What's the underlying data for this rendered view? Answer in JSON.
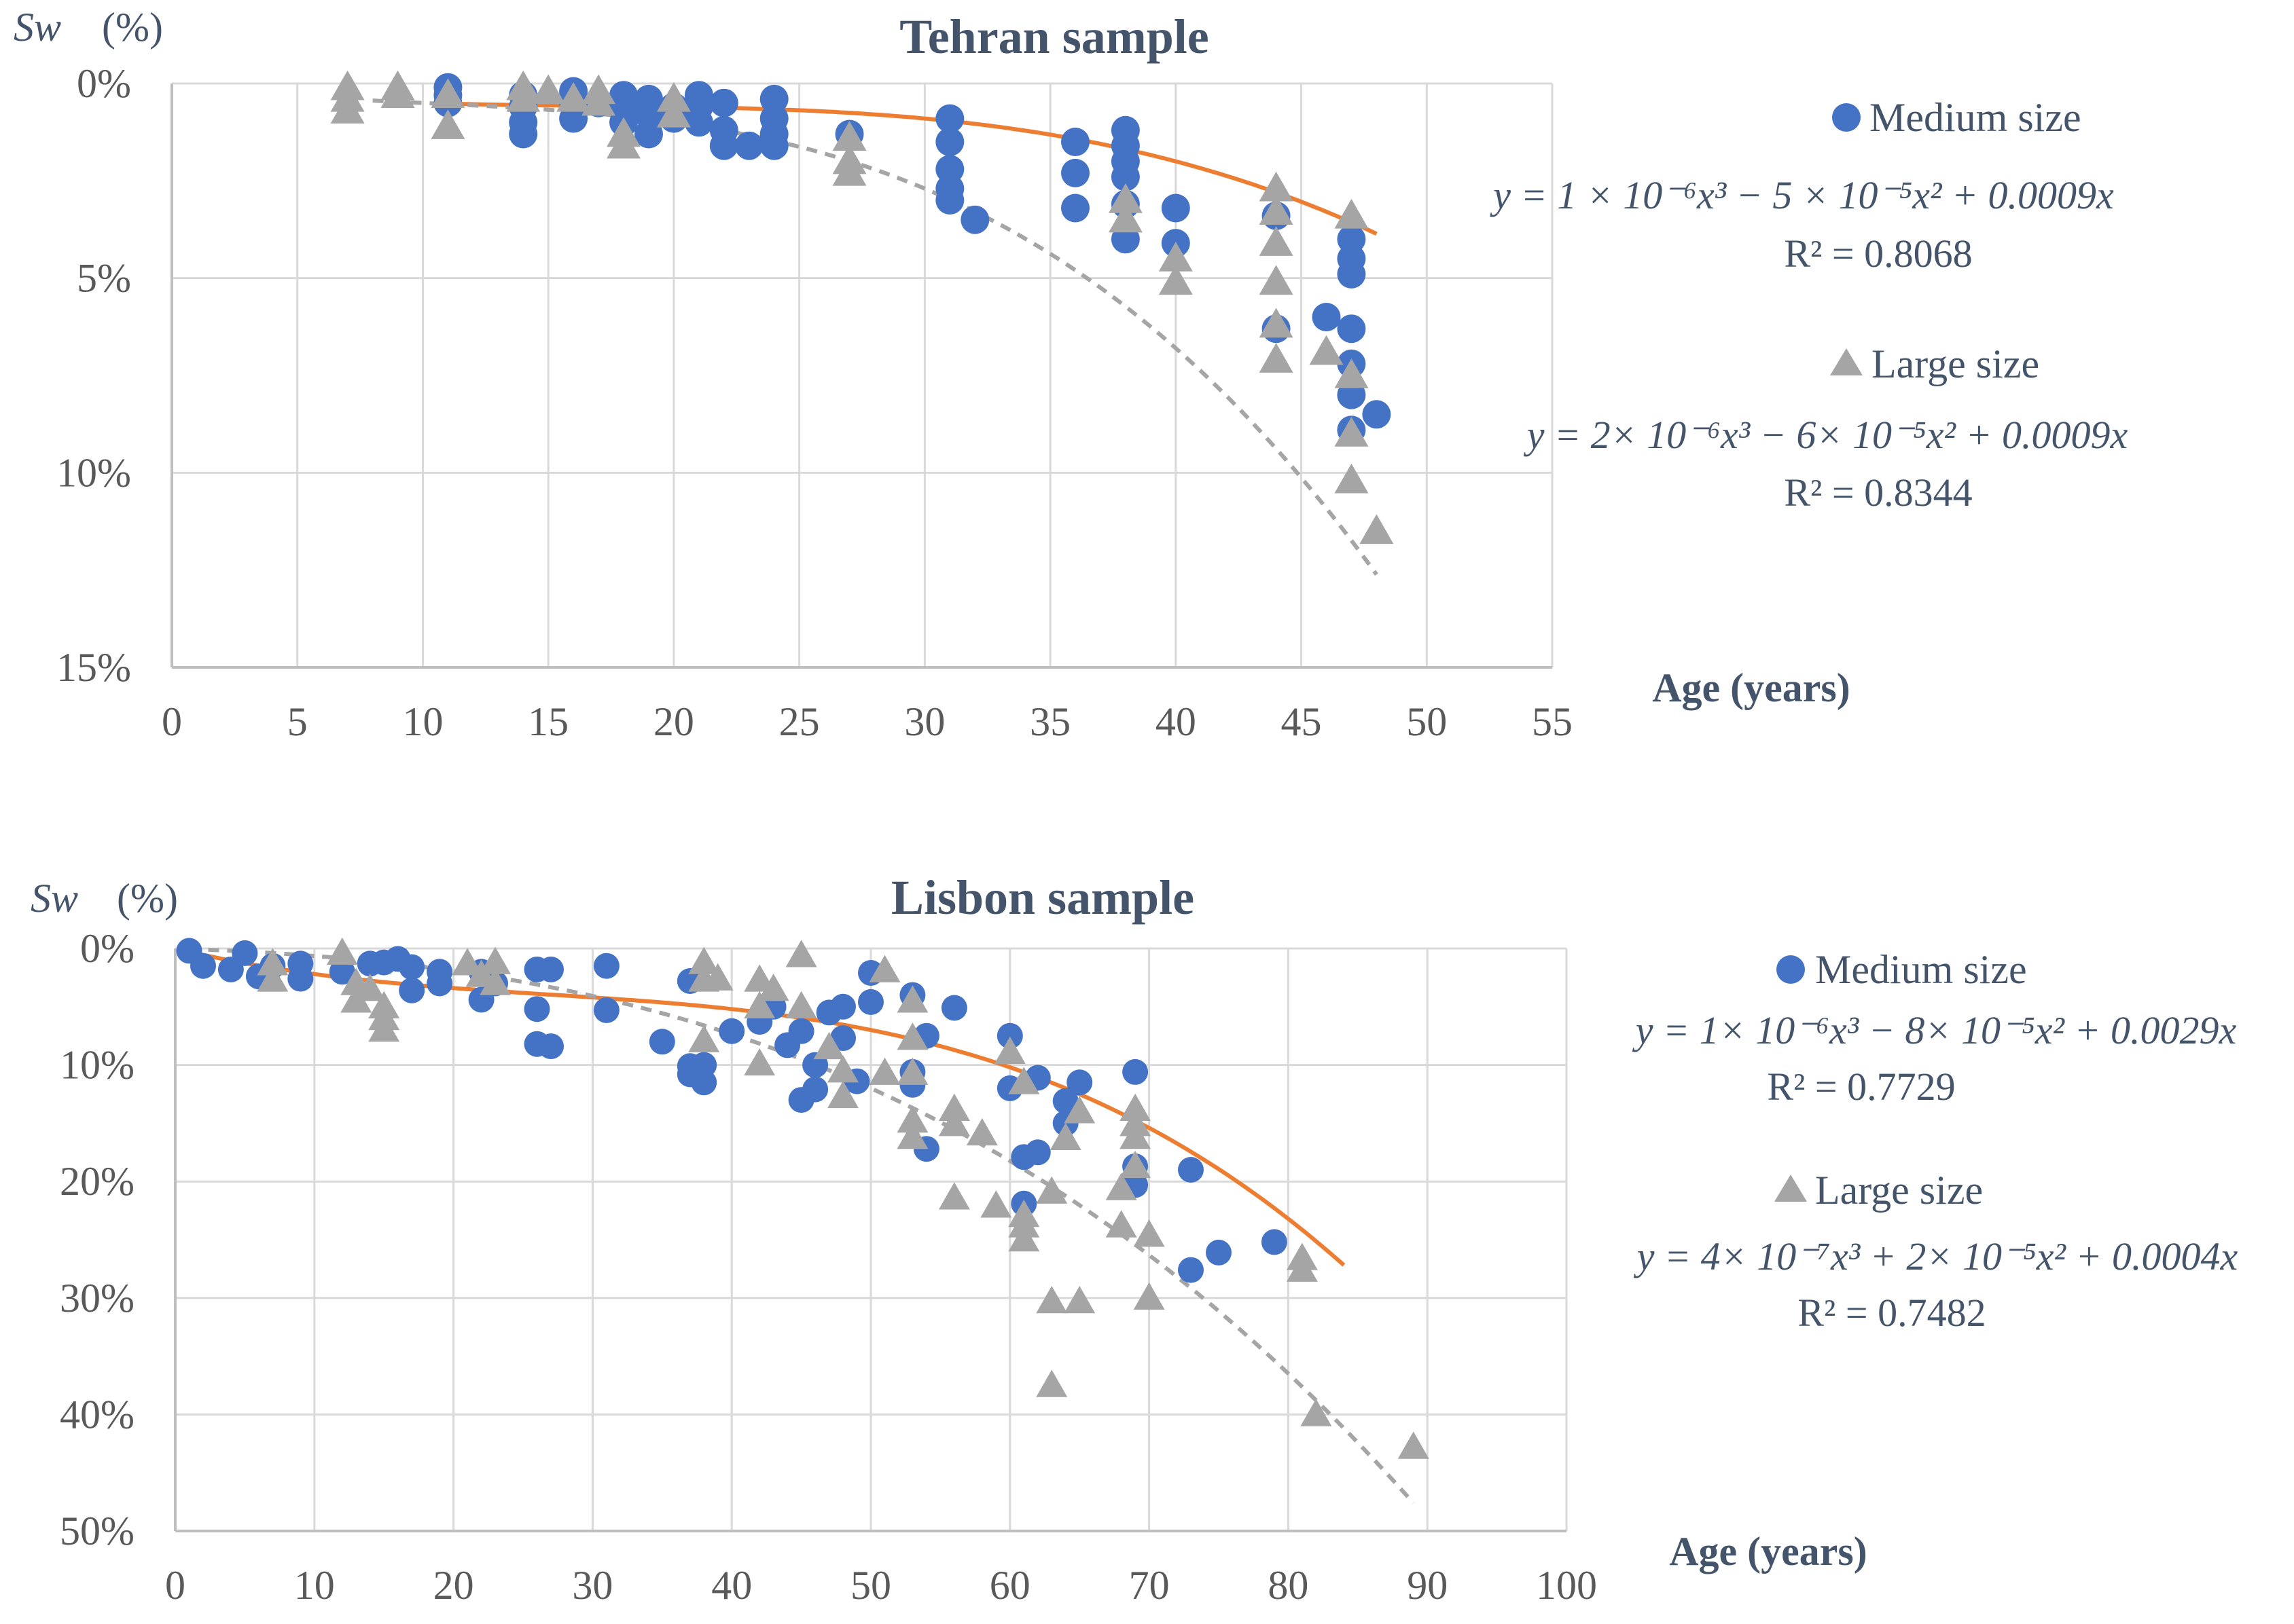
{
  "chart_data": [
    {
      "type": "scatter",
      "title": "Tehran sample",
      "ylabel_symbol": "Sw",
      "ylabel_unit": "(%)",
      "xlabel": "Age (years)",
      "xlim": [
        0,
        55
      ],
      "xticks": [
        0,
        5,
        10,
        15,
        20,
        25,
        30,
        35,
        40,
        45,
        50,
        55
      ],
      "ylim": [
        0,
        15
      ],
      "yticks": [
        0,
        5,
        10,
        15
      ],
      "ytick_labels": [
        "0%",
        "5%",
        "10%",
        "15%"
      ],
      "y_inverted": true,
      "series": [
        {
          "name": "Medium size",
          "marker": "circle",
          "color": "#4472c4",
          "fit_color": "#ed7d31",
          "fit_style": "solid",
          "fit_range": [
            11,
            48
          ],
          "fit_coeffs": [
            1e-06,
            -5e-05,
            0.0009
          ],
          "equation": "y = 1 × 10⁻⁶x³  − 5 × 10⁻⁵x²  + 0.0009x",
          "r2": "R² = 0.8068",
          "points": [
            [
              11,
              0.1
            ],
            [
              11,
              0.3
            ],
            [
              11,
              0.5
            ],
            [
              14,
              0.3
            ],
            [
              14,
              0.6
            ],
            [
              14,
              1.0
            ],
            [
              14,
              1.3
            ],
            [
              16,
              0.2
            ],
            [
              16,
              0.5
            ],
            [
              16,
              0.9
            ],
            [
              17,
              0.5
            ],
            [
              18,
              0.3
            ],
            [
              18,
              0.6
            ],
            [
              18,
              1.0
            ],
            [
              19,
              0.4
            ],
            [
              19,
              0.8
            ],
            [
              19,
              1.3
            ],
            [
              20,
              0.6
            ],
            [
              20,
              0.9
            ],
            [
              21,
              0.3
            ],
            [
              21,
              0.6
            ],
            [
              21,
              1.0
            ],
            [
              22,
              0.5
            ],
            [
              22,
              1.2
            ],
            [
              22,
              1.6
            ],
            [
              23,
              1.6
            ],
            [
              24,
              0.4
            ],
            [
              24,
              0.9
            ],
            [
              24,
              1.3
            ],
            [
              24,
              1.6
            ],
            [
              27,
              1.3
            ],
            [
              31,
              0.9
            ],
            [
              31,
              1.5
            ],
            [
              31,
              2.2
            ],
            [
              31,
              2.7
            ],
            [
              31,
              3.0
            ],
            [
              32,
              3.5
            ],
            [
              36,
              1.5
            ],
            [
              36,
              2.3
            ],
            [
              36,
              3.2
            ],
            [
              38,
              1.2
            ],
            [
              38,
              1.6
            ],
            [
              38,
              2.0
            ],
            [
              38,
              2.4
            ],
            [
              38,
              3.1
            ],
            [
              38,
              4.0
            ],
            [
              40,
              3.2
            ],
            [
              40,
              4.1
            ],
            [
              44,
              3.4
            ],
            [
              44,
              6.3
            ],
            [
              46,
              6.0
            ],
            [
              47,
              4.0
            ],
            [
              47,
              4.5
            ],
            [
              47,
              4.9
            ],
            [
              47,
              6.3
            ],
            [
              47,
              7.2
            ],
            [
              47,
              8.0
            ],
            [
              47,
              8.9
            ],
            [
              48,
              8.5
            ]
          ]
        },
        {
          "name": "Large size",
          "marker": "triangle",
          "color": "#a5a5a5",
          "fit_color": "#a5a5a5",
          "fit_style": "dashed",
          "fit_range": [
            8,
            48
          ],
          "fit_coeffs": [
            2e-06,
            -6e-05,
            0.0009
          ],
          "equation": "y = 2× 10⁻⁶x³ − 6× 10⁻⁵x² + 0.0009x",
          "r2": "R² = 0.8344",
          "points": [
            [
              7,
              0.1
            ],
            [
              7,
              0.4
            ],
            [
              7,
              0.7
            ],
            [
              9,
              0.1
            ],
            [
              9,
              0.3
            ],
            [
              11,
              0.3
            ],
            [
              11,
              1.1
            ],
            [
              14,
              0.1
            ],
            [
              14,
              0.4
            ],
            [
              15,
              0.2
            ],
            [
              16,
              0.4
            ],
            [
              17,
              0.2
            ],
            [
              17,
              0.5
            ],
            [
              18,
              1.3
            ],
            [
              18,
              1.6
            ],
            [
              20,
              0.4
            ],
            [
              20,
              0.8
            ],
            [
              27,
              1.4
            ],
            [
              27,
              2.0
            ],
            [
              27,
              2.3
            ],
            [
              38,
              3.0
            ],
            [
              38,
              3.5
            ],
            [
              40,
              4.5
            ],
            [
              40,
              5.1
            ],
            [
              44,
              2.7
            ],
            [
              44,
              3.3
            ],
            [
              44,
              4.1
            ],
            [
              44,
              5.1
            ],
            [
              44,
              6.2
            ],
            [
              44,
              7.1
            ],
            [
              46,
              6.9
            ],
            [
              47,
              3.4
            ],
            [
              47,
              7.5
            ],
            [
              47,
              9.0
            ],
            [
              47,
              10.2
            ],
            [
              48,
              11.5
            ]
          ]
        }
      ]
    },
    {
      "type": "scatter",
      "title": "Lisbon sample",
      "ylabel_symbol": "Sw",
      "ylabel_unit": "(%)",
      "xlabel": "Age (years)",
      "xlim": [
        0,
        100
      ],
      "xticks": [
        0,
        10,
        20,
        30,
        40,
        50,
        60,
        70,
        80,
        90,
        100
      ],
      "ylim": [
        0,
        50
      ],
      "yticks": [
        0,
        10,
        20,
        30,
        40,
        50
      ],
      "ytick_labels": [
        "0%",
        "10%",
        "20%",
        "30%",
        "40%",
        "50%"
      ],
      "y_inverted": true,
      "series": [
        {
          "name": "Medium size",
          "marker": "circle",
          "color": "#4472c4",
          "fit_color": "#ed7d31",
          "fit_style": "solid",
          "fit_range": [
            1,
            84
          ],
          "fit_coeffs": [
            1e-06,
            -8e-05,
            0.0029
          ],
          "equation": "y = 1× 10⁻⁶x³  − 8× 10⁻⁵x² + 0.0029x",
          "r2": "R² = 0.7729",
          "points": [
            [
              1,
              0.2
            ],
            [
              2,
              1.5
            ],
            [
              4,
              1.8
            ],
            [
              5,
              0.4
            ],
            [
              6,
              2.4
            ],
            [
              7,
              1.5
            ],
            [
              9,
              1.3
            ],
            [
              9,
              2.6
            ],
            [
              12,
              2.0
            ],
            [
              14,
              1.3
            ],
            [
              15,
              1.2
            ],
            [
              16,
              0.9
            ],
            [
              17,
              3.6
            ],
            [
              17,
              1.6
            ],
            [
              19,
              2.0
            ],
            [
              19,
              3.0
            ],
            [
              22,
              2.0
            ],
            [
              22,
              4.4
            ],
            [
              23,
              3.0
            ],
            [
              26,
              1.8
            ],
            [
              26,
              5.2
            ],
            [
              26,
              8.2
            ],
            [
              27,
              1.8
            ],
            [
              27,
              8.4
            ],
            [
              31,
              1.5
            ],
            [
              31,
              5.3
            ],
            [
              35,
              8.0
            ],
            [
              37,
              2.8
            ],
            [
              37,
              10.1
            ],
            [
              37,
              10.8
            ],
            [
              38,
              11.5
            ],
            [
              38,
              10.0
            ],
            [
              40,
              7.1
            ],
            [
              42,
              6.3
            ],
            [
              43,
              5.0
            ],
            [
              44,
              8.3
            ],
            [
              45,
              13.0
            ],
            [
              45,
              7.1
            ],
            [
              46,
              10.0
            ],
            [
              46,
              12.1
            ],
            [
              47,
              5.5
            ],
            [
              48,
              5.0
            ],
            [
              48,
              7.7
            ],
            [
              49,
              11.4
            ],
            [
              50,
              2.1
            ],
            [
              50,
              4.6
            ],
            [
              53,
              4.0
            ],
            [
              53,
              10.6
            ],
            [
              53,
              11.7
            ],
            [
              54,
              7.5
            ],
            [
              54,
              17.2
            ],
            [
              56,
              5.1
            ],
            [
              60,
              7.5
            ],
            [
              60,
              12.0
            ],
            [
              61,
              17.9
            ],
            [
              61,
              21.9
            ],
            [
              62,
              11.1
            ],
            [
              62,
              17.5
            ],
            [
              64,
              13.1
            ],
            [
              64,
              15.0
            ],
            [
              65,
              11.5
            ],
            [
              69,
              10.6
            ],
            [
              69,
              18.7
            ],
            [
              69,
              20.3
            ],
            [
              73,
              19.0
            ],
            [
              73,
              27.6
            ],
            [
              75,
              26.1
            ],
            [
              79,
              25.2
            ]
          ]
        },
        {
          "name": "Large size",
          "marker": "triangle",
          "color": "#a5a5a5",
          "fit_color": "#a5a5a5",
          "fit_style": "dashed",
          "fit_range": [
            1,
            89
          ],
          "fit_coeffs": [
            4e-07,
            2e-05,
            0.0004
          ],
          "equation": "y = 4× 10⁻⁷x³ + 2× 10⁻⁵x² + 0.0004x",
          "r2": "R² = 0.7482",
          "points": [
            [
              7,
              1.3
            ],
            [
              7,
              2.7
            ],
            [
              12,
              0.4
            ],
            [
              13,
              3.0
            ],
            [
              13,
              4.5
            ],
            [
              14,
              3.5
            ],
            [
              15,
              5.0
            ],
            [
              15,
              6.0
            ],
            [
              15,
              7.0
            ],
            [
              21,
              1.3
            ],
            [
              22,
              2.3
            ],
            [
              23,
              1.2
            ],
            [
              23,
              3.0
            ],
            [
              38,
              1.2
            ],
            [
              38,
              2.7
            ],
            [
              38,
              7.9
            ],
            [
              39,
              2.6
            ],
            [
              42,
              2.7
            ],
            [
              42,
              5.0
            ],
            [
              42,
              9.9
            ],
            [
              43,
              3.5
            ],
            [
              45,
              0.6
            ],
            [
              45,
              5.0
            ],
            [
              47,
              8.5
            ],
            [
              48,
              10.5
            ],
            [
              48,
              12.7
            ],
            [
              51,
              1.9
            ],
            [
              51,
              10.7
            ],
            [
              53,
              4.5
            ],
            [
              53,
              7.7
            ],
            [
              53,
              10.7
            ],
            [
              53,
              14.8
            ],
            [
              53,
              16.2
            ],
            [
              56,
              13.8
            ],
            [
              56,
              15.1
            ],
            [
              56,
              21.4
            ],
            [
              58,
              15.9
            ],
            [
              59,
              22.1
            ],
            [
              60,
              8.9
            ],
            [
              61,
              11.5
            ],
            [
              61,
              22.9
            ],
            [
              61,
              23.8
            ],
            [
              61,
              25.0
            ],
            [
              63,
              20.9
            ],
            [
              63,
              30.3
            ],
            [
              63,
              37.5
            ],
            [
              64,
              16.3
            ],
            [
              65,
              14.0
            ],
            [
              65,
              30.3
            ],
            [
              68,
              20.6
            ],
            [
              68,
              23.8
            ],
            [
              69,
              13.8
            ],
            [
              69,
              15.1
            ],
            [
              69,
              16.2
            ],
            [
              69,
              18.7
            ],
            [
              70,
              24.6
            ],
            [
              70,
              30.0
            ],
            [
              81,
              26.6
            ],
            [
              81,
              27.6
            ],
            [
              82,
              40.0
            ],
            [
              89,
              42.8
            ]
          ]
        }
      ]
    }
  ]
}
